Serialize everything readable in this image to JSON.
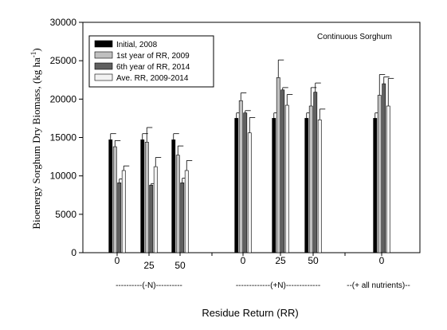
{
  "chart_data": {
    "type": "bar",
    "annotation": "Continuous Sorghum",
    "ylabel_main": "Bioenergy Sorghum Dry Biomass, (kg ha",
    "ylabel_sup": "-1",
    "ylabel_close": ")",
    "xlabel": "Residue Return (RR)",
    "ylim": [
      0,
      30000
    ],
    "yticks": [
      0,
      5000,
      10000,
      15000,
      20000,
      25000,
      30000
    ],
    "yticks_labels": [
      "0",
      "5000",
      "10000",
      "15000",
      "20000",
      "25000",
      "30000"
    ],
    "categories": [
      "0",
      "25",
      "50",
      "0",
      "25",
      "50",
      "0"
    ],
    "groups": [
      {
        "label": "----------(-N)----------",
        "categories": [
          0,
          1,
          2
        ]
      },
      {
        "label": "-------------(+N)-------------",
        "categories": [
          3,
          4,
          5
        ]
      },
      {
        "label": "--(+ all nutrients)--",
        "categories": [
          6
        ]
      }
    ],
    "legend_position": "top-left",
    "series": [
      {
        "name": "Initial, 2008",
        "color": "#000000",
        "values": [
          14700,
          14700,
          14700,
          17500,
          17500,
          17500,
          17500
        ],
        "errors": [
          800,
          800,
          800,
          700,
          700,
          700,
          700
        ]
      },
      {
        "name": "1st year of RR, 2009",
        "color": "#c0c0c0",
        "values": [
          13800,
          14400,
          12700,
          19800,
          22800,
          19100,
          20500
        ],
        "errors": [
          800,
          1900,
          1200,
          1000,
          2300,
          2400,
          2700
        ]
      },
      {
        "name": "6th year of RR, 2014",
        "color": "#606060",
        "values": [
          9100,
          8800,
          9100,
          18200,
          21200,
          20900,
          22000
        ],
        "errors": [
          500,
          200,
          600,
          300,
          300,
          1200,
          900
        ]
      },
      {
        "name": "Ave. RR, 2009-2014",
        "color": "#f2f2f2",
        "values": [
          10700,
          11200,
          10700,
          15600,
          19200,
          17300,
          19100
        ],
        "errors": [
          600,
          1200,
          1300,
          2000,
          1400,
          1400,
          3600
        ]
      }
    ]
  }
}
